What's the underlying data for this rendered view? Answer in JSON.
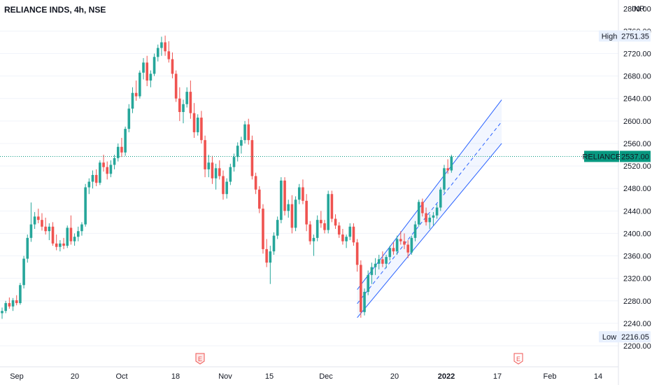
{
  "header": {
    "title": "RELIANCE INDS, 4h, NSE",
    "currency": "INR"
  },
  "badges": {
    "high_label": "High",
    "high_value": "2751.35",
    "low_label": "Low",
    "low_value": "2216.05",
    "last_label": "RELIANCE",
    "last_value": "2537.00",
    "earnings_marker": "E"
  },
  "colors": {
    "up": "#26a69a",
    "down": "#ef5350",
    "channel": "#2962ff",
    "last_price": "#089981",
    "grid": "#f0f3fa"
  },
  "chart_data": {
    "type": "candlestick",
    "interval": "4h",
    "symbol": "RELIANCE INDS",
    "exchange": "NSE",
    "y_axis": {
      "ticks": [
        2200,
        2240,
        2280,
        2320,
        2360,
        2400,
        2440,
        2480,
        2520,
        2560,
        2600,
        2640,
        2680,
        2720,
        2760,
        2800
      ],
      "tick_labels": [
        "2200.00",
        "2240.00",
        "2280.00",
        "2320.00",
        "2360.00",
        "2400.00",
        "2440.00",
        "2480.00",
        "2520.00",
        "2560.00",
        "2600.00",
        "2640.00",
        "2680.00",
        "2720.00",
        "2760.00",
        "2800.00"
      ],
      "range": [
        2200,
        2800
      ]
    },
    "x_axis": {
      "labels": [
        "Sep",
        "20",
        "Oct",
        "18",
        "Nov",
        "15",
        "Dec",
        "20",
        "2022",
        "17",
        "Feb",
        "14"
      ],
      "bold": [
        "2022"
      ]
    },
    "candles": [
      [
        2258,
        2268,
        2248,
        2262
      ],
      [
        2262,
        2280,
        2258,
        2276
      ],
      [
        2276,
        2286,
        2266,
        2270
      ],
      [
        2270,
        2285,
        2262,
        2281
      ],
      [
        2281,
        2290,
        2272,
        2276
      ],
      [
        2276,
        2312,
        2273,
        2308
      ],
      [
        2308,
        2360,
        2302,
        2355
      ],
      [
        2355,
        2398,
        2348,
        2392
      ],
      [
        2392,
        2455,
        2385,
        2416
      ],
      [
        2416,
        2438,
        2408,
        2430
      ],
      [
        2430,
        2444,
        2418,
        2424
      ],
      [
        2424,
        2436,
        2405,
        2412
      ],
      [
        2412,
        2428,
        2398,
        2404
      ],
      [
        2404,
        2418,
        2388,
        2412
      ],
      [
        2412,
        2420,
        2378,
        2382
      ],
      [
        2382,
        2398,
        2370,
        2376
      ],
      [
        2376,
        2388,
        2368,
        2382
      ],
      [
        2382,
        2392,
        2372,
        2378
      ],
      [
        2378,
        2414,
        2374,
        2410
      ],
      [
        2410,
        2432,
        2380,
        2386
      ],
      [
        2386,
        2400,
        2378,
        2394
      ],
      [
        2394,
        2412,
        2386,
        2404
      ],
      [
        2404,
        2420,
        2396,
        2416
      ],
      [
        2416,
        2488,
        2412,
        2482
      ],
      [
        2482,
        2498,
        2470,
        2492
      ],
      [
        2492,
        2512,
        2480,
        2504
      ],
      [
        2504,
        2514,
        2484,
        2490
      ],
      [
        2490,
        2530,
        2486,
        2526
      ],
      [
        2526,
        2540,
        2510,
        2518
      ],
      [
        2518,
        2528,
        2496,
        2506
      ],
      [
        2506,
        2530,
        2500,
        2522
      ],
      [
        2522,
        2540,
        2514,
        2534
      ],
      [
        2534,
        2560,
        2528,
        2554
      ],
      [
        2554,
        2570,
        2536,
        2544
      ],
      [
        2544,
        2590,
        2538,
        2586
      ],
      [
        2586,
        2630,
        2580,
        2622
      ],
      [
        2622,
        2660,
        2614,
        2650
      ],
      [
        2650,
        2672,
        2636,
        2644
      ],
      [
        2644,
        2690,
        2640,
        2686
      ],
      [
        2686,
        2712,
        2674,
        2704
      ],
      [
        2704,
        2716,
        2662,
        2672
      ],
      [
        2672,
        2690,
        2660,
        2684
      ],
      [
        2684,
        2720,
        2680,
        2714
      ],
      [
        2714,
        2736,
        2706,
        2730
      ],
      [
        2730,
        2750,
        2716,
        2740
      ],
      [
        2740,
        2752,
        2716,
        2724
      ],
      [
        2724,
        2742,
        2704,
        2710
      ],
      [
        2710,
        2722,
        2676,
        2684
      ],
      [
        2684,
        2690,
        2634,
        2640
      ],
      [
        2640,
        2660,
        2600,
        2616
      ],
      [
        2616,
        2638,
        2596,
        2630
      ],
      [
        2630,
        2660,
        2624,
        2652
      ],
      [
        2652,
        2672,
        2604,
        2614
      ],
      [
        2614,
        2632,
        2570,
        2580
      ],
      [
        2580,
        2612,
        2574,
        2606
      ],
      [
        2606,
        2618,
        2560,
        2566
      ],
      [
        2566,
        2574,
        2500,
        2514
      ],
      [
        2514,
        2540,
        2500,
        2526
      ],
      [
        2526,
        2538,
        2488,
        2498
      ],
      [
        2498,
        2524,
        2478,
        2516
      ],
      [
        2516,
        2530,
        2496,
        2502
      ],
      [
        2502,
        2512,
        2460,
        2470
      ],
      [
        2470,
        2498,
        2462,
        2492
      ],
      [
        2492,
        2524,
        2486,
        2518
      ],
      [
        2518,
        2542,
        2510,
        2536
      ],
      [
        2536,
        2562,
        2528,
        2556
      ],
      [
        2556,
        2572,
        2542,
        2566
      ],
      [
        2566,
        2600,
        2560,
        2594
      ],
      [
        2594,
        2604,
        2558,
        2566
      ],
      [
        2566,
        2574,
        2496,
        2502
      ],
      [
        2502,
        2508,
        2470,
        2478
      ],
      [
        2478,
        2484,
        2436,
        2444
      ],
      [
        2444,
        2452,
        2364,
        2372
      ],
      [
        2372,
        2390,
        2340,
        2348
      ],
      [
        2348,
        2378,
        2310,
        2368
      ],
      [
        2368,
        2402,
        2362,
        2396
      ],
      [
        2396,
        2430,
        2390,
        2424
      ],
      [
        2424,
        2500,
        2418,
        2494
      ],
      [
        2494,
        2500,
        2432,
        2440
      ],
      [
        2440,
        2460,
        2428,
        2452
      ],
      [
        2452,
        2468,
        2400,
        2410
      ],
      [
        2410,
        2466,
        2404,
        2460
      ],
      [
        2460,
        2488,
        2452,
        2482
      ],
      [
        2482,
        2496,
        2452,
        2458
      ],
      [
        2458,
        2470,
        2404,
        2416
      ],
      [
        2416,
        2422,
        2380,
        2386
      ],
      [
        2386,
        2398,
        2360,
        2392
      ],
      [
        2392,
        2432,
        2386,
        2424
      ],
      [
        2424,
        2440,
        2410,
        2418
      ],
      [
        2418,
        2424,
        2400,
        2406
      ],
      [
        2406,
        2476,
        2400,
        2470
      ],
      [
        2470,
        2476,
        2420,
        2426
      ],
      [
        2426,
        2434,
        2408,
        2414
      ],
      [
        2414,
        2420,
        2392,
        2398
      ],
      [
        2398,
        2408,
        2380,
        2386
      ],
      [
        2386,
        2398,
        2374,
        2394
      ],
      [
        2394,
        2418,
        2388,
        2412
      ],
      [
        2412,
        2418,
        2378,
        2384
      ],
      [
        2384,
        2390,
        2332,
        2344
      ],
      [
        2344,
        2352,
        2250,
        2260
      ],
      [
        2260,
        2302,
        2254,
        2296
      ],
      [
        2296,
        2334,
        2290,
        2326
      ],
      [
        2326,
        2348,
        2310,
        2340
      ],
      [
        2340,
        2356,
        2326,
        2346
      ],
      [
        2346,
        2362,
        2336,
        2354
      ],
      [
        2354,
        2368,
        2340,
        2346
      ],
      [
        2346,
        2362,
        2338,
        2358
      ],
      [
        2358,
        2378,
        2352,
        2374
      ],
      [
        2374,
        2384,
        2362,
        2368
      ],
      [
        2368,
        2396,
        2362,
        2390
      ],
      [
        2390,
        2404,
        2380,
        2386
      ],
      [
        2386,
        2400,
        2372,
        2380
      ],
      [
        2380,
        2388,
        2356,
        2366
      ],
      [
        2366,
        2396,
        2362,
        2392
      ],
      [
        2392,
        2422,
        2386,
        2416
      ],
      [
        2416,
        2460,
        2412,
        2456
      ],
      [
        2456,
        2462,
        2430,
        2436
      ],
      [
        2436,
        2446,
        2414,
        2420
      ],
      [
        2420,
        2434,
        2408,
        2428
      ],
      [
        2428,
        2438,
        2414,
        2432
      ],
      [
        2432,
        2452,
        2426,
        2446
      ],
      [
        2446,
        2482,
        2440,
        2478
      ],
      [
        2478,
        2522,
        2472,
        2516
      ],
      [
        2516,
        2532,
        2506,
        2512
      ],
      [
        2512,
        2540,
        2508,
        2537
      ]
    ],
    "channel": {
      "start": {
        "i": 98,
        "lower": 2250,
        "upper": 2300
      },
      "end": {
        "i": 134,
        "lower": 2530,
        "upper": 2605
      }
    },
    "high": 2751.35,
    "low": 2216.05,
    "last": 2537.0,
    "grid": false,
    "legend": "none"
  }
}
